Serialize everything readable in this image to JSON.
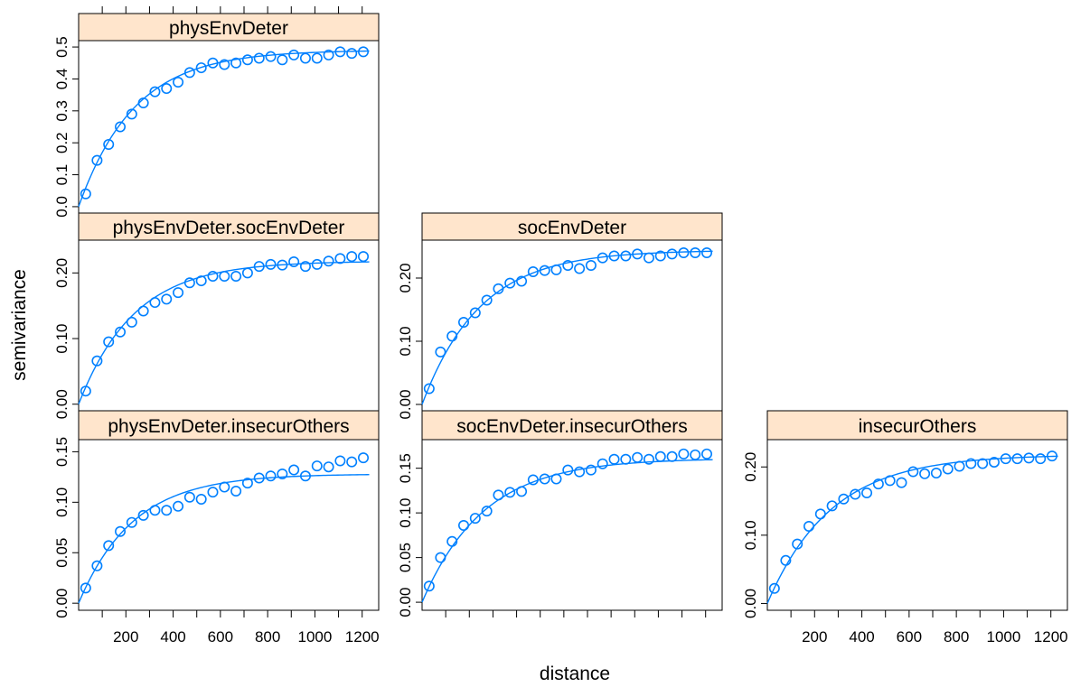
{
  "chart_data": {
    "type": "scatter",
    "layout": "lattice",
    "xlabel": "distance",
    "ylabel": "semivariance",
    "xlim": [
      0,
      1270
    ],
    "xticks": [
      200,
      400,
      600,
      800,
      1000,
      1200
    ],
    "colors": {
      "strip": "#FFE5CC",
      "points": "#0080FF",
      "line": "#0080FF"
    },
    "panels": [
      {
        "title": "physEnvDeter",
        "row": 0,
        "col": 0,
        "ylim": [
          -0.02,
          0.52
        ],
        "yticks": [
          "0.0",
          "0.1",
          "0.2",
          "0.3",
          "0.4",
          "0.5"
        ],
        "x": [
          30,
          78,
          127,
          176,
          225,
          274,
          323,
          372,
          421,
          470,
          519,
          568,
          617,
          666,
          715,
          764,
          813,
          862,
          911,
          960,
          1009,
          1058,
          1107,
          1156,
          1205
        ],
        "y": [
          0.04,
          0.145,
          0.195,
          0.25,
          0.29,
          0.325,
          0.36,
          0.37,
          0.39,
          0.42,
          0.435,
          0.45,
          0.445,
          0.45,
          0.46,
          0.465,
          0.47,
          0.46,
          0.475,
          0.465,
          0.465,
          0.475,
          0.485,
          0.48,
          0.485
        ],
        "model": {
          "sill": 0.49,
          "range": 235
        }
      },
      {
        "title": "physEnvDeter.socEnvDeter",
        "row": 1,
        "col": 0,
        "ylim": [
          -0.01,
          0.25
        ],
        "yticks": [
          "0.00",
          "0.10",
          "0.20"
        ],
        "x": [
          30,
          78,
          127,
          176,
          225,
          274,
          323,
          372,
          421,
          470,
          519,
          568,
          617,
          666,
          715,
          764,
          813,
          862,
          911,
          960,
          1009,
          1058,
          1107,
          1156,
          1205
        ],
        "y": [
          0.02,
          0.066,
          0.095,
          0.11,
          0.125,
          0.142,
          0.155,
          0.16,
          0.17,
          0.185,
          0.188,
          0.195,
          0.195,
          0.195,
          0.2,
          0.21,
          0.213,
          0.212,
          0.217,
          0.21,
          0.213,
          0.218,
          0.222,
          0.225,
          0.225
        ],
        "model": {
          "sill": 0.218,
          "range": 235
        }
      },
      {
        "title": "socEnvDeter",
        "row": 1,
        "col": 1,
        "ylim": [
          -0.01,
          0.26
        ],
        "yticks": [
          "0.00",
          "0.10",
          "0.20"
        ],
        "x": [
          30,
          78,
          127,
          176,
          225,
          274,
          323,
          372,
          421,
          470,
          519,
          568,
          617,
          666,
          715,
          764,
          813,
          862,
          911,
          960,
          1009,
          1058,
          1107,
          1156,
          1205
        ],
        "y": [
          0.025,
          0.083,
          0.108,
          0.13,
          0.145,
          0.165,
          0.183,
          0.192,
          0.195,
          0.21,
          0.212,
          0.213,
          0.22,
          0.215,
          0.22,
          0.232,
          0.235,
          0.235,
          0.238,
          0.232,
          0.235,
          0.238,
          0.24,
          0.24,
          0.24
        ],
        "model": {
          "sill": 0.244,
          "range": 245
        }
      },
      {
        "title": "physEnvDeter.insecurOthers",
        "row": 2,
        "col": 0,
        "ylim": [
          -0.007,
          0.162
        ],
        "yticks": [
          "0.00",
          "0.05",
          "0.10",
          "0.15"
        ],
        "x": [
          30,
          78,
          127,
          176,
          225,
          274,
          323,
          372,
          421,
          470,
          519,
          568,
          617,
          666,
          715,
          764,
          813,
          862,
          911,
          960,
          1009,
          1058,
          1107,
          1156,
          1205
        ],
        "y": [
          0.015,
          0.037,
          0.057,
          0.071,
          0.08,
          0.087,
          0.092,
          0.092,
          0.096,
          0.105,
          0.103,
          0.11,
          0.115,
          0.111,
          0.119,
          0.124,
          0.126,
          0.128,
          0.132,
          0.126,
          0.136,
          0.135,
          0.141,
          0.14,
          0.144
        ],
        "model": {
          "sill": 0.128,
          "range": 230
        }
      },
      {
        "title": "socEnvDeter.insecurOthers",
        "row": 2,
        "col": 1,
        "ylim": [
          -0.009,
          0.182
        ],
        "yticks": [
          "0.00",
          "0.05",
          "0.10",
          "0.15"
        ],
        "x": [
          30,
          78,
          127,
          176,
          225,
          274,
          323,
          372,
          421,
          470,
          519,
          568,
          617,
          666,
          715,
          764,
          813,
          862,
          911,
          960,
          1009,
          1058,
          1107,
          1156,
          1205
        ],
        "y": [
          0.018,
          0.05,
          0.068,
          0.086,
          0.094,
          0.102,
          0.12,
          0.123,
          0.124,
          0.137,
          0.138,
          0.138,
          0.148,
          0.146,
          0.148,
          0.155,
          0.16,
          0.16,
          0.162,
          0.16,
          0.163,
          0.163,
          0.166,
          0.165,
          0.166
        ],
        "model": {
          "sill": 0.161,
          "range": 260
        }
      },
      {
        "title": "insecurOthers",
        "row": 2,
        "col": 2,
        "ylim": [
          -0.01,
          0.24
        ],
        "yticks": [
          "0.00",
          "0.10",
          "0.20"
        ],
        "x": [
          30,
          78,
          127,
          176,
          225,
          274,
          323,
          372,
          421,
          470,
          519,
          568,
          617,
          666,
          715,
          764,
          813,
          862,
          911,
          960,
          1009,
          1058,
          1107,
          1156,
          1205
        ],
        "y": [
          0.022,
          0.063,
          0.087,
          0.113,
          0.131,
          0.143,
          0.153,
          0.16,
          0.162,
          0.175,
          0.18,
          0.177,
          0.193,
          0.19,
          0.191,
          0.197,
          0.201,
          0.205,
          0.205,
          0.207,
          0.212,
          0.212,
          0.213,
          0.212,
          0.216
        ],
        "model": {
          "sill": 0.218,
          "range": 270
        }
      }
    ]
  }
}
